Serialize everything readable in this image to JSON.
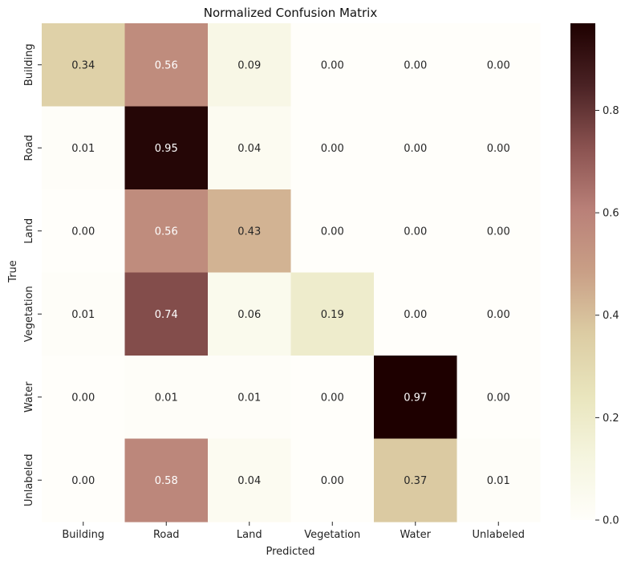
{
  "chart_data": {
    "type": "heatmap",
    "title": "Normalized Confusion Matrix",
    "xlabel": "Predicted",
    "ylabel": "True",
    "x_categories": [
      "Building",
      "Road",
      "Land",
      "Vegetation",
      "Water",
      "Unlabeled"
    ],
    "y_categories": [
      "Building",
      "Road",
      "Land",
      "Vegetation",
      "Water",
      "Unlabeled"
    ],
    "values": [
      [
        0.34,
        0.56,
        0.09,
        0.0,
        0.0,
        0.0
      ],
      [
        0.01,
        0.95,
        0.04,
        0.0,
        0.0,
        0.0
      ],
      [
        0.0,
        0.56,
        0.43,
        0.0,
        0.0,
        0.0
      ],
      [
        0.01,
        0.74,
        0.06,
        0.19,
        0.0,
        0.0
      ],
      [
        0.0,
        0.01,
        0.01,
        0.0,
        0.97,
        0.0
      ],
      [
        0.0,
        0.58,
        0.04,
        0.0,
        0.37,
        0.01
      ]
    ],
    "value_format": "0.00",
    "colorbar": {
      "min": 0.0,
      "max": 0.97,
      "ticks": [
        0.0,
        0.2,
        0.4,
        0.6,
        0.8
      ],
      "tick_labels": [
        "0.0",
        "0.2",
        "0.4",
        "0.6",
        "0.8"
      ],
      "colormap": [
        "#fffefa",
        "#f5f5df",
        "#e9e5bd",
        "#dccca3",
        "#c99f86",
        "#b98078",
        "#8a5250",
        "#4a2224",
        "#1e0000"
      ],
      "placement": "right"
    },
    "text_colors": {
      "dark": "#262626",
      "light": "#ffffff"
    }
  }
}
